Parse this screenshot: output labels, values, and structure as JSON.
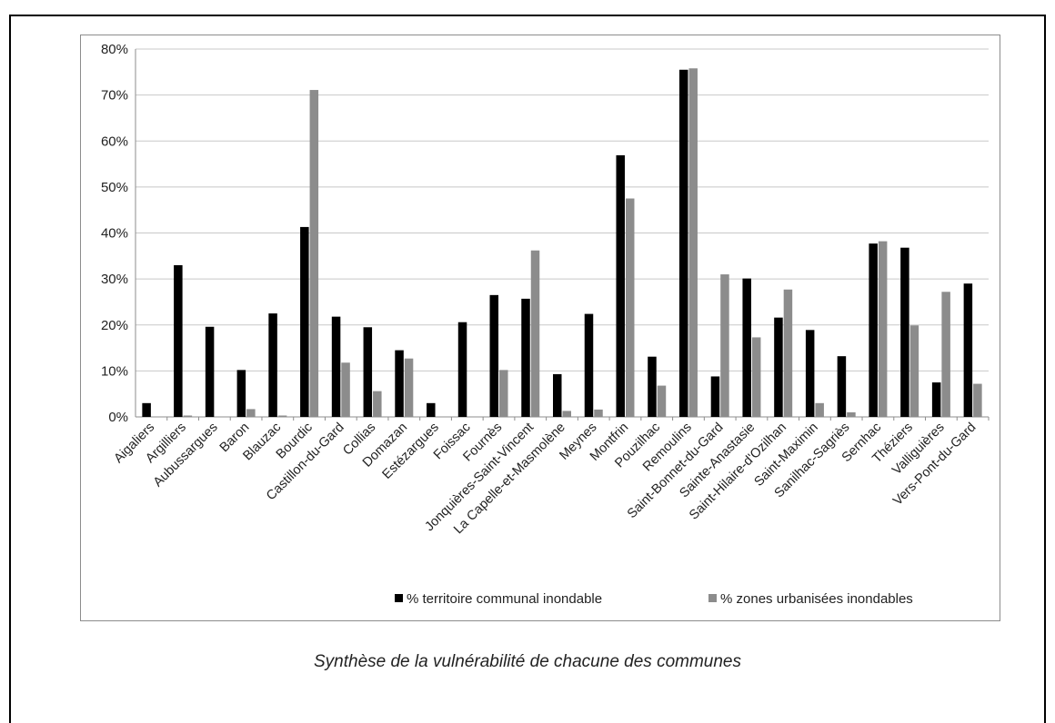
{
  "caption": "Synthèse de la vulnérabilité de chacune des communes",
  "chart_data": {
    "type": "bar",
    "title": "",
    "xlabel": "",
    "ylabel": "",
    "ylim": [
      0,
      80
    ],
    "yticks": [
      "0%",
      "10%",
      "20%",
      "30%",
      "40%",
      "50%",
      "60%",
      "70%",
      "80%"
    ],
    "grid": true,
    "legend_position": "bottom",
    "categories": [
      "Aigaliers",
      "Argilliers",
      "Aubussargues",
      "Baron",
      "Blauzac",
      "Bourdic",
      "Castillon-du-Gard",
      "Collias",
      "Domazan",
      "Estézargues",
      "Foissac",
      "Fournès",
      "Jonquières-Saint-Vincent",
      "La Capelle-et-Masmolène",
      "Meynes",
      "Montfrin",
      "Pouzilhac",
      "Remoulins",
      "Saint-Bonnet-du-Gard",
      "Sainte-Anastasie",
      "Saint-Hilaire-d'Ozilhan",
      "Saint-Maximin",
      "Sanilhac-Sagriès",
      "Sernhac",
      "Théziers",
      "Valliguières",
      "Vers-Pont-du-Gard"
    ],
    "series": [
      {
        "name": "% territoire communal inondable",
        "color": "#000000",
        "values": [
          3,
          33,
          19.6,
          10.2,
          22.5,
          41.3,
          21.8,
          19.5,
          14.5,
          3,
          20.6,
          26.5,
          25.7,
          9.3,
          22.4,
          56.9,
          13.1,
          75.5,
          8.8,
          30.1,
          21.6,
          18.9,
          13.2,
          37.7,
          36.8,
          7.5,
          29
        ]
      },
      {
        "name": "% zones urbanisées inondables",
        "color": "#8c8c8c",
        "values": [
          0,
          0.3,
          0,
          1.7,
          0.3,
          71.1,
          11.8,
          5.6,
          12.7,
          0,
          0,
          10.2,
          36.2,
          1.3,
          1.6,
          47.5,
          6.8,
          75.8,
          31,
          17.3,
          27.7,
          3,
          1,
          38.2,
          19.9,
          27.2,
          7.2
        ]
      }
    ]
  }
}
